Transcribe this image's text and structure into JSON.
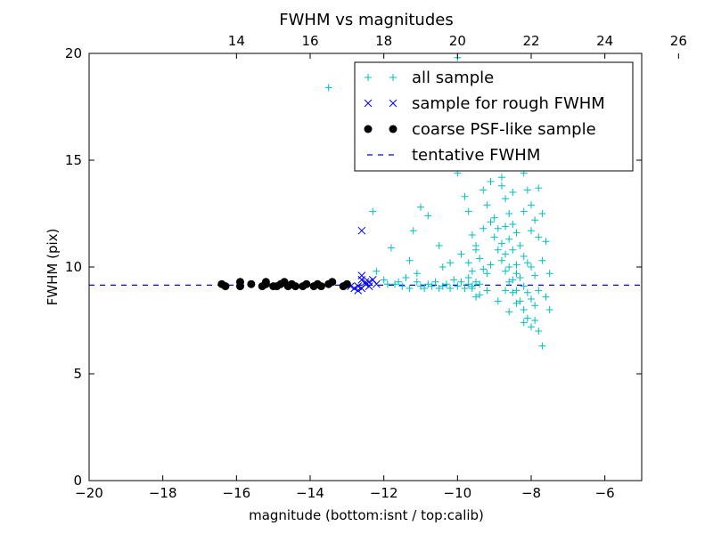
{
  "chart_data": {
    "type": "scatter",
    "title": "FWHM vs magnitudes",
    "xlabel": "magnitude (bottom:isnt / top:calib)",
    "ylabel": "FWHM (pix)",
    "xlim": [
      -20,
      -5
    ],
    "ylim": [
      0,
      20
    ],
    "x_ticks": [
      -20,
      -18,
      -16,
      -14,
      -12,
      -10,
      -8,
      -6
    ],
    "x_tick_labels": [
      "−20",
      "−18",
      "−16",
      "−14",
      "−12",
      "−10",
      "−8",
      "−6"
    ],
    "y_ticks": [
      0,
      5,
      10,
      15,
      20
    ],
    "y_tick_labels": [
      "0",
      "5",
      "10",
      "15",
      "20"
    ],
    "top_axis": {
      "offset": 30.0,
      "ticks": [
        14,
        16,
        18,
        20,
        22,
        24,
        26
      ],
      "tick_labels": [
        "14",
        "16",
        "18",
        "20",
        "22",
        "24",
        "26"
      ]
    },
    "legend_position": "upper-right",
    "grid": false,
    "series": [
      {
        "name": "all sample",
        "marker": "plus",
        "color": "#00bfbf",
        "points": [
          [
            -13.5,
            18.4
          ],
          [
            -12.3,
            12.6
          ],
          [
            -11.8,
            10.9
          ],
          [
            -11.7,
            9.2
          ],
          [
            -11.5,
            9.1
          ],
          [
            -11.3,
            9.0
          ],
          [
            -11.1,
            9.3
          ],
          [
            -11.0,
            9.1
          ],
          [
            -10.9,
            9.0
          ],
          [
            -10.8,
            9.2
          ],
          [
            -10.7,
            9.1
          ],
          [
            -10.6,
            9.3
          ],
          [
            -10.5,
            9.0
          ],
          [
            -10.4,
            9.1
          ],
          [
            -10.3,
            9.2
          ],
          [
            -10.2,
            9.0
          ],
          [
            -10.1,
            9.4
          ],
          [
            -10.0,
            9.1
          ],
          [
            -9.9,
            9.3
          ],
          [
            -9.8,
            9.0
          ],
          [
            -9.7,
            9.2
          ],
          [
            -9.6,
            9.1
          ],
          [
            -9.5,
            9.3
          ],
          [
            -11.3,
            10.3
          ],
          [
            -11.1,
            9.7
          ],
          [
            -11.4,
            9.5
          ],
          [
            -12.0,
            9.4
          ],
          [
            -12.2,
            9.8
          ],
          [
            -11.9,
            9.2
          ],
          [
            -11.6,
            9.3
          ],
          [
            -11.7,
            17.4
          ],
          [
            -11.5,
            16.6
          ],
          [
            -11.3,
            16.0
          ],
          [
            -11.0,
            12.8
          ],
          [
            -11.2,
            11.7
          ],
          [
            -10.8,
            12.4
          ],
          [
            -10.5,
            11.0
          ],
          [
            -10.4,
            10.0
          ],
          [
            -10.2,
            10.2
          ],
          [
            -10.0,
            19.8
          ],
          [
            -10.1,
            15.6
          ],
          [
            -10.0,
            14.4
          ],
          [
            -9.8,
            13.3
          ],
          [
            -9.7,
            12.6
          ],
          [
            -9.6,
            11.5
          ],
          [
            -9.5,
            11.0
          ],
          [
            -9.4,
            10.4
          ],
          [
            -9.3,
            9.9
          ],
          [
            -9.2,
            9.7
          ],
          [
            -9.1,
            10.1
          ],
          [
            -9.9,
            10.6
          ],
          [
            -9.7,
            9.5
          ],
          [
            -9.6,
            9.8
          ],
          [
            -9.5,
            8.6
          ],
          [
            -9.4,
            9.2
          ],
          [
            -9.0,
            19.4
          ],
          [
            -9.1,
            17.8
          ],
          [
            -9.2,
            16.5
          ],
          [
            -9.0,
            15.3
          ],
          [
            -8.9,
            14.7
          ],
          [
            -8.8,
            13.8
          ],
          [
            -8.7,
            13.2
          ],
          [
            -8.6,
            12.5
          ],
          [
            -8.5,
            12.0
          ],
          [
            -8.4,
            11.6
          ],
          [
            -8.3,
            11.0
          ],
          [
            -8.2,
            10.5
          ],
          [
            -8.1,
            10.2
          ],
          [
            -8.0,
            10.0
          ],
          [
            -7.9,
            9.6
          ],
          [
            -8.8,
            18.8
          ],
          [
            -8.6,
            17.2
          ],
          [
            -8.5,
            16.8
          ],
          [
            -8.4,
            15.9
          ],
          [
            -8.3,
            15.1
          ],
          [
            -8.2,
            14.4
          ],
          [
            -8.1,
            13.6
          ],
          [
            -8.0,
            12.9
          ],
          [
            -7.9,
            12.2
          ],
          [
            -7.8,
            11.4
          ],
          [
            -8.7,
            11.9
          ],
          [
            -8.6,
            11.3
          ],
          [
            -8.5,
            10.8
          ],
          [
            -8.4,
            10.1
          ],
          [
            -8.3,
            9.5
          ],
          [
            -8.2,
            9.1
          ],
          [
            -8.1,
            8.8
          ],
          [
            -8.0,
            8.5
          ],
          [
            -7.9,
            8.2
          ],
          [
            -7.8,
            8.9
          ],
          [
            -9.0,
            12.3
          ],
          [
            -8.9,
            11.8
          ],
          [
            -8.8,
            11.1
          ],
          [
            -8.7,
            10.6
          ],
          [
            -8.6,
            10.0
          ],
          [
            -8.5,
            9.4
          ],
          [
            -8.4,
            8.9
          ],
          [
            -8.3,
            8.4
          ],
          [
            -8.2,
            8.0
          ],
          [
            -8.1,
            7.6
          ],
          [
            -9.3,
            13.6
          ],
          [
            -9.2,
            12.9
          ],
          [
            -9.1,
            12.1
          ],
          [
            -9.0,
            11.4
          ],
          [
            -8.9,
            10.8
          ],
          [
            -8.8,
            10.3
          ],
          [
            -8.7,
            9.8
          ],
          [
            -8.6,
            9.3
          ],
          [
            -8.5,
            8.8
          ],
          [
            -8.4,
            8.3
          ],
          [
            -8.0,
            7.2
          ],
          [
            -7.9,
            7.5
          ],
          [
            -7.7,
            6.3
          ],
          [
            -7.8,
            7.0
          ],
          [
            -8.2,
            7.4
          ],
          [
            -8.6,
            7.9
          ],
          [
            -8.9,
            8.4
          ],
          [
            -9.2,
            8.9
          ],
          [
            -9.4,
            8.7
          ],
          [
            -9.6,
            9.0
          ],
          [
            -8.3,
            16.4
          ],
          [
            -8.4,
            17.6
          ],
          [
            -8.6,
            18.3
          ],
          [
            -8.9,
            16.0
          ],
          [
            -9.2,
            15.4
          ],
          [
            -9.4,
            14.8
          ],
          [
            -8.1,
            15.8
          ],
          [
            -7.9,
            14.9
          ],
          [
            -7.8,
            13.7
          ],
          [
            -7.7,
            12.5
          ],
          [
            -7.6,
            11.2
          ],
          [
            -7.5,
            9.7
          ],
          [
            -7.6,
            8.6
          ],
          [
            -7.5,
            8.0
          ],
          [
            -7.7,
            10.3
          ],
          [
            -8.0,
            11.7
          ],
          [
            -8.2,
            12.6
          ],
          [
            -8.5,
            13.5
          ],
          [
            -8.8,
            14.2
          ],
          [
            -9.1,
            14.0
          ],
          [
            -9.3,
            11.8
          ],
          [
            -9.5,
            10.8
          ],
          [
            -9.7,
            10.2
          ],
          [
            -8.7,
            8.9
          ],
          [
            -8.4,
            9.7
          ]
        ]
      },
      {
        "name": "sample for rough FWHM",
        "marker": "x",
        "color": "#0000ff",
        "points": [
          [
            -12.6,
            11.7
          ],
          [
            -12.7,
            9.1
          ],
          [
            -12.6,
            9.0
          ],
          [
            -12.5,
            9.2
          ],
          [
            -12.6,
            9.6
          ],
          [
            -12.4,
            9.3
          ],
          [
            -12.3,
            9.4
          ],
          [
            -12.2,
            9.2
          ],
          [
            -12.8,
            9.0
          ],
          [
            -12.7,
            8.9
          ],
          [
            -12.5,
            9.3
          ],
          [
            -12.4,
            9.1
          ],
          [
            -12.9,
            9.1
          ],
          [
            -12.6,
            9.4
          ]
        ]
      },
      {
        "name": "coarse PSF-like sample",
        "marker": "dot",
        "color": "#000000",
        "points": [
          [
            -16.4,
            9.2
          ],
          [
            -16.3,
            9.1
          ],
          [
            -15.9,
            9.3
          ],
          [
            -15.9,
            9.1
          ],
          [
            -15.3,
            9.1
          ],
          [
            -15.2,
            9.2
          ],
          [
            -15.0,
            9.1
          ],
          [
            -14.8,
            9.2
          ],
          [
            -14.7,
            9.3
          ],
          [
            -14.5,
            9.2
          ],
          [
            -14.4,
            9.1
          ],
          [
            -14.2,
            9.1
          ],
          [
            -14.1,
            9.2
          ],
          [
            -13.9,
            9.1
          ],
          [
            -13.7,
            9.1
          ],
          [
            -13.5,
            9.2
          ],
          [
            -13.4,
            9.3
          ],
          [
            -13.1,
            9.1
          ],
          [
            -13.0,
            9.2
          ],
          [
            -14.9,
            9.1
          ],
          [
            -15.6,
            9.2
          ],
          [
            -14.6,
            9.1
          ],
          [
            -13.8,
            9.2
          ],
          [
            -15.2,
            9.3
          ]
        ]
      },
      {
        "name": "tentative FWHM",
        "marker": "dashed-line",
        "color": "#0000ff",
        "y": 9.15
      }
    ]
  }
}
